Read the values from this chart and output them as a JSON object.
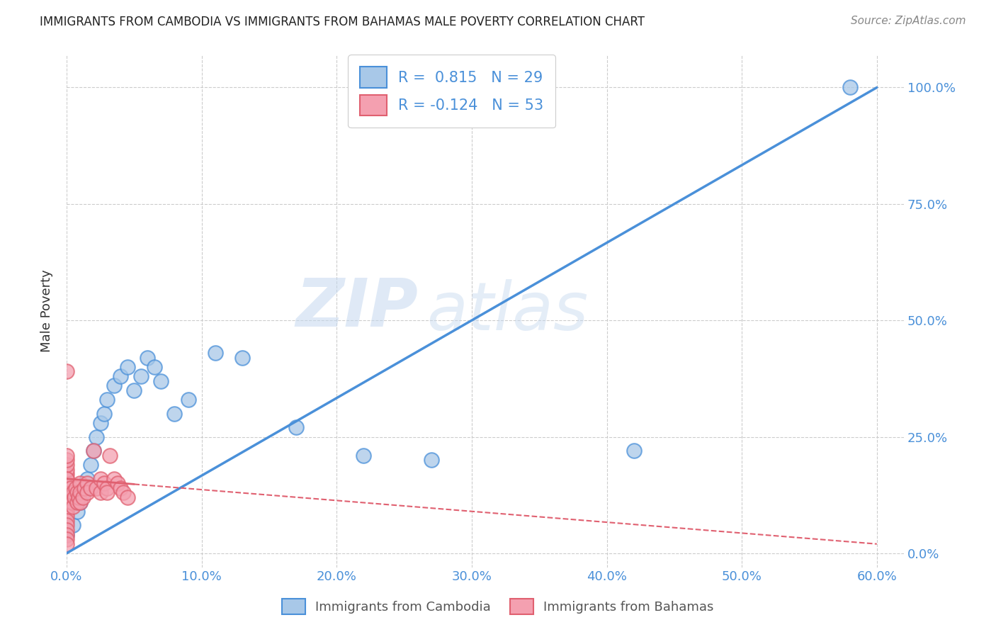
{
  "title": "IMMIGRANTS FROM CAMBODIA VS IMMIGRANTS FROM BAHAMAS MALE POVERTY CORRELATION CHART",
  "source": "Source: ZipAtlas.com",
  "ylabel_label": "Male Poverty",
  "legend_label_1": "Immigrants from Cambodia",
  "legend_label_2": "Immigrants from Bahamas",
  "r1": 0.815,
  "n1": 29,
  "r2": -0.124,
  "n2": 53,
  "color1": "#a8c8e8",
  "color2": "#f4a0b0",
  "line_color1": "#4a90d9",
  "line_color2": "#e06070",
  "watermark_zip": "ZIP",
  "watermark_atlas": "atlas",
  "background_color": "#ffffff",
  "xlim": [
    0.0,
    0.62
  ],
  "ylim": [
    -0.03,
    1.07
  ],
  "xtick_vals": [
    0.0,
    0.1,
    0.2,
    0.3,
    0.4,
    0.5,
    0.6
  ],
  "xtick_labels": [
    "0.0%",
    "10.0%",
    "20.0%",
    "30.0%",
    "40.0%",
    "50.0%",
    "60.0%"
  ],
  "ytick_vals": [
    0.0,
    0.25,
    0.5,
    0.75,
    1.0
  ],
  "ytick_labels": [
    "0.0%",
    "25.0%",
    "50.0%",
    "75.0%",
    "100.0%"
  ],
  "cam_x": [
    0.0,
    0.005,
    0.008,
    0.01,
    0.012,
    0.015,
    0.018,
    0.02,
    0.022,
    0.025,
    0.028,
    0.03,
    0.035,
    0.04,
    0.045,
    0.05,
    0.055,
    0.06,
    0.065,
    0.07,
    0.08,
    0.09,
    0.11,
    0.13,
    0.17,
    0.22,
    0.27,
    0.42,
    0.58
  ],
  "cam_y": [
    0.04,
    0.06,
    0.09,
    0.11,
    0.13,
    0.16,
    0.19,
    0.22,
    0.25,
    0.28,
    0.3,
    0.33,
    0.36,
    0.38,
    0.4,
    0.35,
    0.38,
    0.42,
    0.4,
    0.37,
    0.3,
    0.33,
    0.43,
    0.42,
    0.27,
    0.21,
    0.2,
    0.22,
    1.0
  ],
  "bah_x": [
    0.0,
    0.0,
    0.0,
    0.0,
    0.0,
    0.0,
    0.0,
    0.0,
    0.0,
    0.0,
    0.0,
    0.0,
    0.0,
    0.0,
    0.0,
    0.0,
    0.0,
    0.0,
    0.0,
    0.0,
    0.003,
    0.003,
    0.004,
    0.005,
    0.005,
    0.006,
    0.007,
    0.008,
    0.008,
    0.009,
    0.01,
    0.01,
    0.01,
    0.012,
    0.013,
    0.015,
    0.015,
    0.018,
    0.02,
    0.022,
    0.025,
    0.025,
    0.028,
    0.03,
    0.03,
    0.032,
    0.035,
    0.038,
    0.04,
    0.042,
    0.045,
    0.0,
    0.0
  ],
  "bah_y": [
    0.17,
    0.15,
    0.13,
    0.12,
    0.11,
    0.1,
    0.09,
    0.08,
    0.07,
    0.06,
    0.05,
    0.04,
    0.03,
    0.14,
    0.16,
    0.18,
    0.19,
    0.2,
    0.21,
    0.16,
    0.14,
    0.12,
    0.11,
    0.13,
    0.1,
    0.12,
    0.14,
    0.13,
    0.11,
    0.12,
    0.15,
    0.13,
    0.11,
    0.12,
    0.14,
    0.15,
    0.13,
    0.14,
    0.22,
    0.14,
    0.13,
    0.16,
    0.15,
    0.14,
    0.13,
    0.21,
    0.16,
    0.15,
    0.14,
    0.13,
    0.12,
    0.39,
    0.02
  ],
  "line1_x0": 0.0,
  "line1_y0": 0.0,
  "line1_x1": 0.6,
  "line1_y1": 1.0,
  "line2_x0": 0.0,
  "line2_y0": 0.16,
  "line2_x1": 0.6,
  "line2_y1": 0.02,
  "line2_solid_end": 0.05
}
